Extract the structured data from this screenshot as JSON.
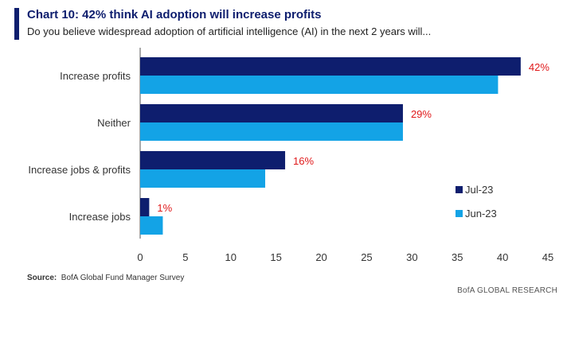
{
  "header": {
    "title": "Chart 10: 42% think AI adoption will increase profits",
    "subtitle": "Do you believe widespread adoption of artificial intelligence (AI) in the next 2 years will..."
  },
  "footer": {
    "source_label": "Source:",
    "source_text": "BofA Global Fund Manager Survey",
    "brand": "BofA GLOBAL RESEARCH"
  },
  "colors": {
    "jul23": "#0e1e6e",
    "jun23": "#13a3e6",
    "data_label": "#e0191a",
    "title": "#0e1e6e"
  },
  "chart_data": {
    "type": "bar",
    "orientation": "horizontal",
    "title": "Chart 10: 42% think AI adoption will increase profits",
    "subtitle": "Do you believe widespread adoption of artificial intelligence (AI) in the next 2 years will...",
    "categories": [
      "Increase profits",
      "Neither",
      "Increase jobs & profits",
      "Increase jobs"
    ],
    "series": [
      {
        "name": "Jul-23",
        "values": [
          42,
          29,
          16,
          1
        ],
        "data_labels": [
          "42%",
          "29%",
          "16%",
          "1%"
        ]
      },
      {
        "name": "Jun-23",
        "values": [
          39.5,
          29,
          13.8,
          2.5
        ]
      }
    ],
    "xlim": [
      0,
      45
    ],
    "xticks": [
      0,
      5,
      10,
      15,
      20,
      25,
      30,
      35,
      40,
      45
    ],
    "grid": false,
    "legend": "right"
  }
}
